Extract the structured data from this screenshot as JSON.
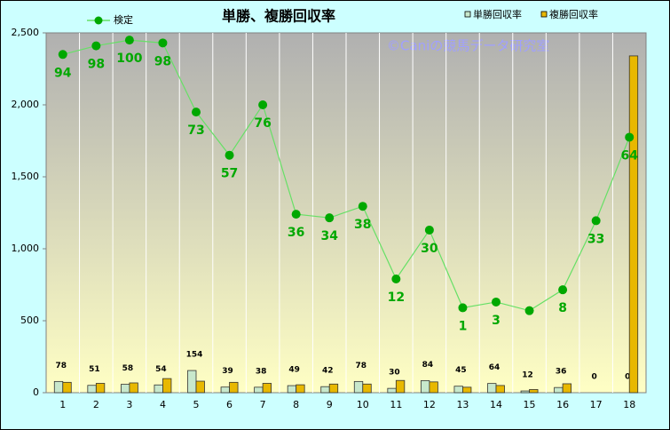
{
  "chart_data": {
    "type": "bar",
    "title": "単勝、複勝回収率",
    "annotation": "©Caniの競馬データ研究室",
    "categories": [
      "1",
      "2",
      "3",
      "4",
      "5",
      "6",
      "7",
      "8",
      "9",
      "10",
      "11",
      "12",
      "13",
      "14",
      "15",
      "16",
      "17",
      "18"
    ],
    "series": [
      {
        "name": "単勝回収率",
        "type": "bar",
        "color": "#c8e8cc",
        "show_values": true,
        "values": [
          78,
          51,
          58,
          54,
          154,
          39,
          38,
          49,
          42,
          78,
          30,
          84,
          45,
          64,
          12,
          36,
          0,
          0
        ]
      },
      {
        "name": "複勝回収率",
        "type": "bar",
        "color": "#e8b800",
        "show_values": false,
        "values": [
          72,
          65,
          68,
          98,
          80,
          72,
          65,
          55,
          60,
          60,
          85,
          75,
          38,
          50,
          22,
          62,
          0,
          2340
        ]
      },
      {
        "name": "検定",
        "type": "line",
        "color": "#66e066",
        "marker_color": "#00a800",
        "values": [
          2350,
          2410,
          2450,
          2430,
          1950,
          1650,
          2000,
          1240,
          1215,
          1295,
          790,
          1130,
          590,
          630,
          570,
          715,
          1195,
          1775
        ],
        "value_labels": [
          "94",
          "98",
          "100",
          "98",
          "73",
          "57",
          "76",
          "36",
          "34",
          "38",
          "12",
          "30",
          "1",
          "3",
          null,
          "8",
          "33",
          "64"
        ]
      }
    ],
    "ylim": [
      0,
      2500
    ],
    "yticks": [
      0,
      500,
      {
        "value": 1000,
        "label": "1,000"
      },
      {
        "value": 1500,
        "label": "1,500"
      },
      {
        "value": 2000,
        "label": "2,000"
      },
      {
        "value": 2500,
        "label": "2,500"
      }
    ]
  }
}
